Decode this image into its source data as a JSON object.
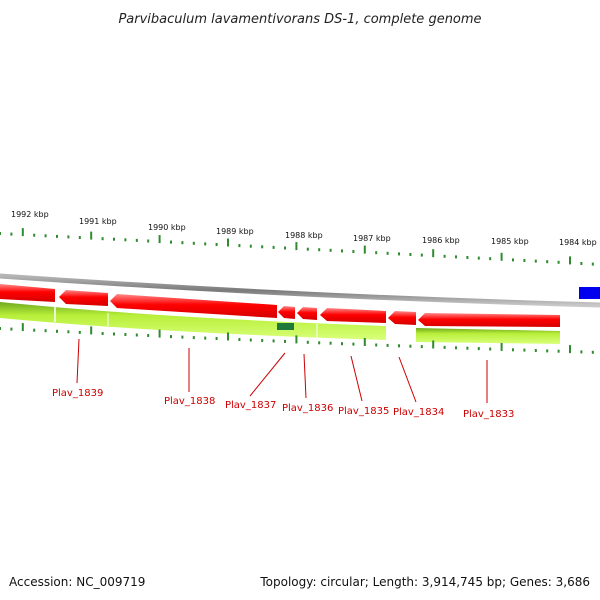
{
  "title": "Parvibaculum lavamentivorans DS-1, complete genome",
  "footer": {
    "accession": "Accession: NC_009719",
    "summary": "Topology: circular; Length: 3,914,745 bp; Genes: 3,686"
  },
  "scale_labels": [
    "1992 kbp",
    "1991 kbp",
    "1990 kbp",
    "1989 kbp",
    "1988 kbp",
    "1987 kbp",
    "1986 kbp",
    "1985 kbp",
    "1984 kbp"
  ],
  "genes": [
    "Plav_1839",
    "Plav_1838",
    "Plav_1837",
    "Plav_1836",
    "Plav_1835",
    "Plav_1834",
    "Plav_1833"
  ],
  "colors": {
    "cds": "#ff0000",
    "gene_band": "#a6e22e",
    "gene_band_edge": "#5a8f1a",
    "tick": "#2e8b2e",
    "backbone": "#8c8c8c",
    "highlight": "#0000ee",
    "small_feature": "#1f7a3a",
    "label": "#cc0000"
  }
}
